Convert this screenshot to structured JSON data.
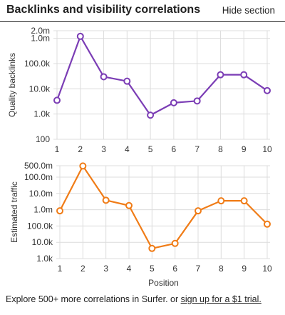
{
  "header": {
    "title": "Backlinks and visibility correlations",
    "hide_label": "Hide section"
  },
  "footer": {
    "text": "Explore 500+ more correlations in Surfer. or ",
    "link": "sign up for a $1 trial."
  },
  "colors": {
    "backlinks": "#7b3db5",
    "traffic": "#f07c17"
  },
  "chart_data": [
    {
      "type": "line",
      "scale": "log",
      "ylabel": "Quality backlinks",
      "xlabel": "",
      "x": [
        1,
        2,
        3,
        4,
        5,
        6,
        7,
        8,
        9,
        10
      ],
      "yticks": [
        100,
        1000,
        10000,
        100000,
        1000000,
        2000000
      ],
      "ytick_labels": [
        "100",
        "1.0k",
        "10.0k",
        "100.0k",
        "1.0m",
        "2.0m"
      ],
      "ylim": [
        100,
        2000000
      ],
      "grid": true,
      "series": [
        {
          "values": [
            3500,
            1200000,
            30000,
            20000,
            900,
            2800,
            3300,
            36000,
            36000,
            8500
          ]
        }
      ]
    },
    {
      "type": "line",
      "scale": "log",
      "ylabel": "Estimated traffic",
      "xlabel": "Position",
      "x": [
        1,
        2,
        3,
        4,
        5,
        6,
        7,
        8,
        9,
        10
      ],
      "yticks": [
        1000,
        10000,
        100000,
        1000000,
        10000000,
        100000000,
        500000000
      ],
      "ytick_labels": [
        "1.0k",
        "10.0k",
        "100.0k",
        "1.0m",
        "10.0m",
        "100.0m",
        "500.0m"
      ],
      "ylim": [
        1000,
        500000000
      ],
      "grid": true,
      "series": [
        {
          "values": [
            850000,
            480000000,
            3800000,
            1800000,
            4200,
            8500,
            850000,
            3500000,
            3500000,
            130000
          ]
        }
      ]
    }
  ]
}
